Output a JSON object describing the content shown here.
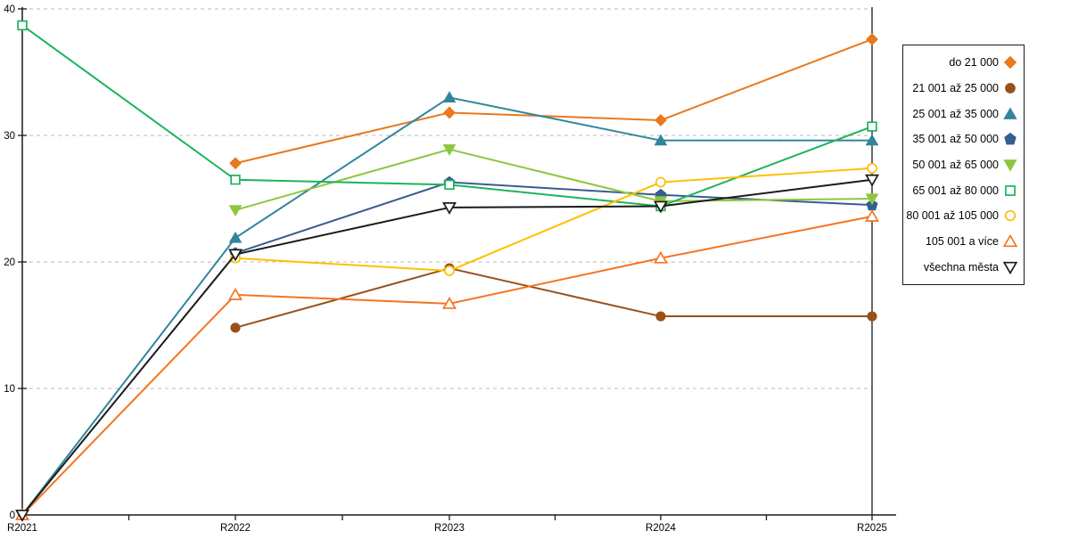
{
  "chart_data": {
    "type": "line",
    "title": "",
    "xlabel": "",
    "ylabel": "",
    "categories": [
      "R2021",
      "R2022",
      "R2023",
      "R2024",
      "R2025"
    ],
    "y_ticks": [
      0,
      10,
      20,
      30,
      40
    ],
    "ylim": [
      0,
      40
    ],
    "grid": "horizontal-dashed",
    "gridline_color": "#b8b8b8",
    "axis_color": "#1a1a1a",
    "legend_position": "right-box",
    "series": [
      {
        "name": "do 21 000",
        "color": "#E8791D",
        "marker": "diamond-filled",
        "values": [
          null,
          27.8,
          31.8,
          31.2,
          37.6
        ]
      },
      {
        "name": "21 001 až 25 000",
        "color": "#9A5018",
        "marker": "circle-filled",
        "values": [
          null,
          14.8,
          19.5,
          15.7,
          15.7
        ]
      },
      {
        "name": "25 001 až 35 000",
        "color": "#31859C",
        "marker": "triangle-up-filled",
        "values": [
          0,
          21.9,
          33.0,
          29.6,
          29.6
        ]
      },
      {
        "name": "35 001 až 50 000",
        "color": "#355E91",
        "marker": "pentagon-filled",
        "values": [
          null,
          20.7,
          26.3,
          25.3,
          24.5
        ]
      },
      {
        "name": "50 001 až 65 000",
        "color": "#8DC63F",
        "marker": "triangle-down-filled",
        "values": [
          null,
          24.1,
          28.9,
          24.8,
          25.0
        ]
      },
      {
        "name": "65 001 až 80 000",
        "color": "#1DB35C",
        "marker": "square-open",
        "values": [
          38.7,
          26.5,
          26.1,
          24.4,
          30.7
        ]
      },
      {
        "name": "80 001 až 105 000",
        "color": "#FFC000",
        "marker": "circle-open",
        "values": [
          null,
          20.3,
          19.3,
          26.3,
          27.4
        ]
      },
      {
        "name": "105 001 a více",
        "color": "#F4751F",
        "marker": "triangle-up-open",
        "values": [
          0,
          17.4,
          16.7,
          20.3,
          23.6
        ]
      },
      {
        "name": "všechna města",
        "color": "#1A1A1A",
        "marker": "triangle-down-open",
        "values": [
          0,
          20.6,
          24.3,
          24.4,
          26.5
        ]
      }
    ]
  }
}
